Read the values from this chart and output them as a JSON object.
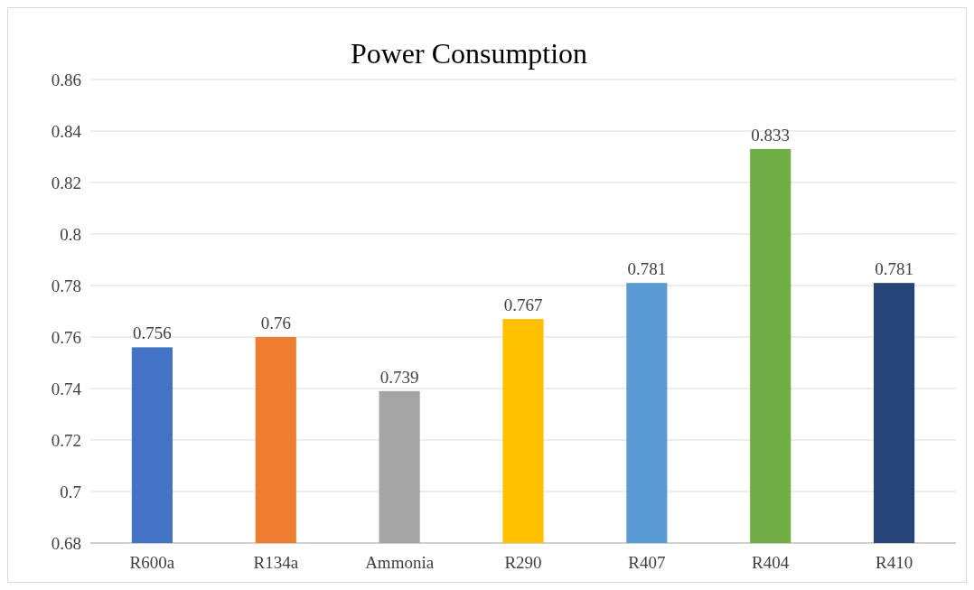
{
  "chart_data": {
    "type": "bar",
    "title": "Power Consumption",
    "categories": [
      "R600a",
      "R134a",
      "Ammonia",
      "R290",
      "R407",
      "R404",
      "R410"
    ],
    "values": [
      0.756,
      0.76,
      0.739,
      0.767,
      0.781,
      0.833,
      0.781
    ],
    "colors": [
      "#4472c4",
      "#ed7d31",
      "#a5a5a5",
      "#ffc000",
      "#5b9bd5",
      "#70ad47",
      "#264478"
    ],
    "ylim": [
      0.68,
      0.86
    ],
    "yticks": [
      0.68,
      0.7,
      0.72,
      0.74,
      0.76,
      0.78,
      0.8,
      0.82,
      0.84,
      0.86
    ],
    "grid": "y",
    "data_labels": true
  }
}
